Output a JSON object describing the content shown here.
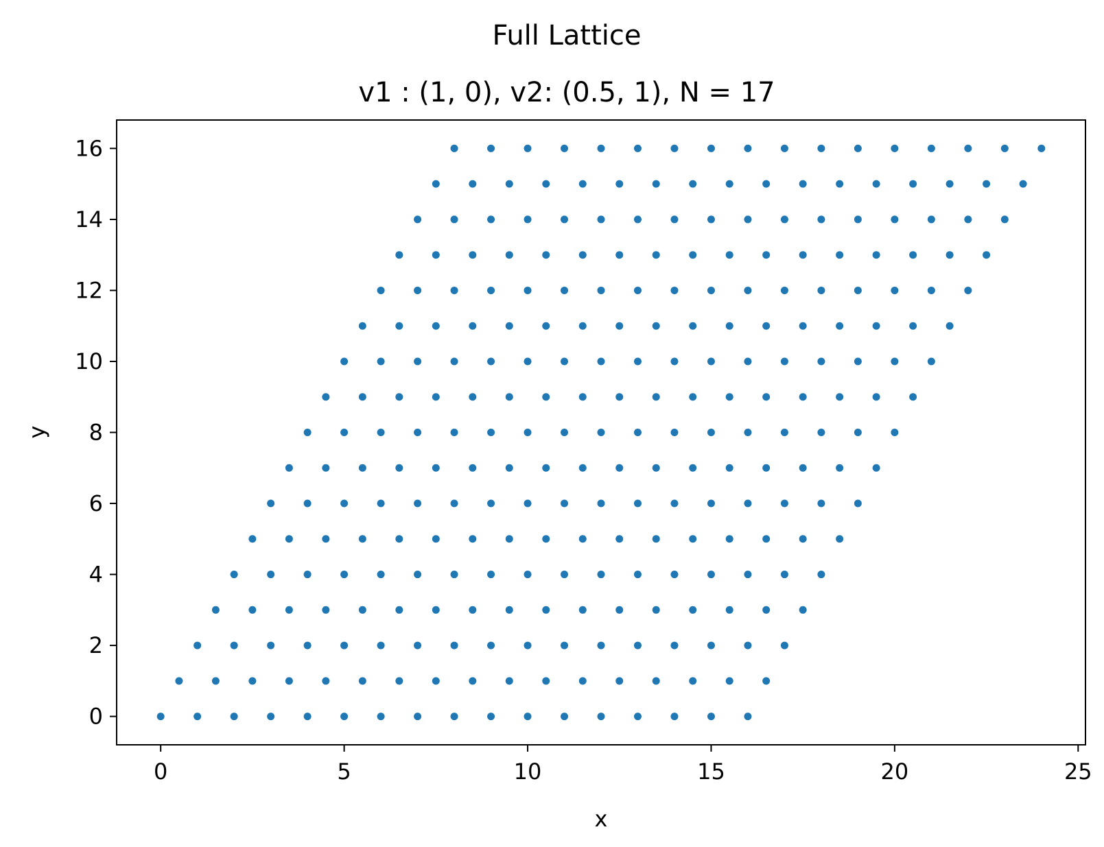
{
  "chart_data": {
    "type": "scatter",
    "title": "Full Lattice",
    "subtitle": "v1 : (1, 0),   v2: (0.5, 1),   N = 17",
    "xlabel": "x",
    "ylabel": "y",
    "xlim": [
      -1.2,
      25.2
    ],
    "ylim": [
      -0.8,
      16.8
    ],
    "xticks": [
      0,
      5,
      10,
      15,
      20,
      25
    ],
    "yticks": [
      0,
      2,
      4,
      6,
      8,
      10,
      12,
      14,
      16
    ],
    "grid": false,
    "legend": "none",
    "series": [
      {
        "color": "#1f77b4",
        "rows": [
          {
            "y": 0,
            "x_start": 0,
            "x_end": 16
          },
          {
            "y": 1,
            "x_start": 0.5,
            "x_end": 16.5
          },
          {
            "y": 2,
            "x_start": 1,
            "x_end": 17
          },
          {
            "y": 3,
            "x_start": 1.5,
            "x_end": 17.5
          },
          {
            "y": 4,
            "x_start": 2,
            "x_end": 18
          },
          {
            "y": 5,
            "x_start": 2.5,
            "x_end": 18.5
          },
          {
            "y": 6,
            "x_start": 3,
            "x_end": 19
          },
          {
            "y": 7,
            "x_start": 3.5,
            "x_end": 19.5
          },
          {
            "y": 8,
            "x_start": 4,
            "x_end": 20
          },
          {
            "y": 9,
            "x_start": 4.5,
            "x_end": 20.5
          },
          {
            "y": 10,
            "x_start": 5,
            "x_end": 21
          },
          {
            "y": 11,
            "x_start": 5.5,
            "x_end": 21.5
          },
          {
            "y": 12,
            "x_start": 6,
            "x_end": 22
          },
          {
            "y": 13,
            "x_start": 6.5,
            "x_end": 22.5
          },
          {
            "y": 14,
            "x_start": 7,
            "x_end": 23
          },
          {
            "y": 15,
            "x_start": 7.5,
            "x_end": 23.5
          },
          {
            "y": 16,
            "x_start": 8,
            "x_end": 24
          }
        ]
      }
    ]
  }
}
